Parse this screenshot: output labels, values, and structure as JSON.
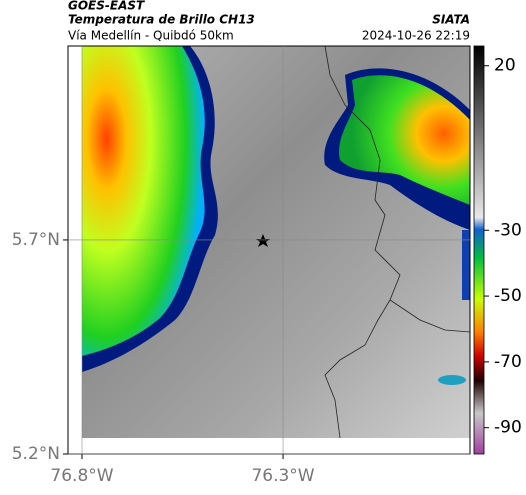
{
  "header": {
    "satellite": "GOES-EAST",
    "title": "Temperatura de Brillo CH13",
    "subtitle": "Vía Medellín - Quibdó 50km",
    "source": "SIATA",
    "timestamp": "2024-10-26 22:19"
  },
  "map": {
    "xlim": [
      -76.8,
      -75.835
    ],
    "ylim": [
      5.2,
      6.153
    ],
    "xticks": [
      {
        "value": -76.8,
        "label": "76.8°W"
      },
      {
        "value": -76.3,
        "label": "76.3°W"
      }
    ],
    "yticks": [
      {
        "value": 5.7,
        "label": "5.7°N"
      },
      {
        "value": 5.2,
        "label": "5.2°N"
      }
    ]
  },
  "colorbar": {
    "lim": [
      26,
      -98
    ],
    "ticks": [
      20,
      -30,
      -50,
      -70,
      -90
    ]
  }
}
